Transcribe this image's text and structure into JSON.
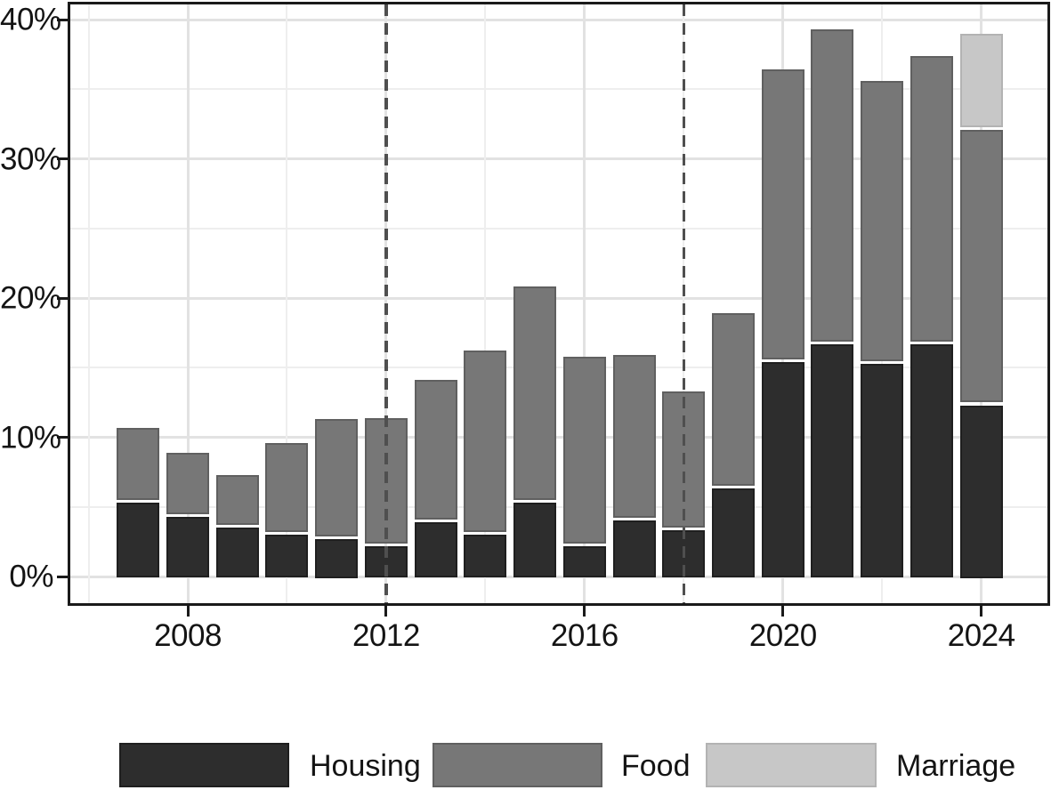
{
  "chart_data": {
    "type": "bar",
    "stacked": true,
    "title": "",
    "xlabel": "",
    "ylabel": "",
    "categories": [
      2007,
      2008,
      2009,
      2010,
      2011,
      2012,
      2013,
      2014,
      2015,
      2016,
      2017,
      2018,
      2019,
      2020,
      2021,
      2022,
      2023,
      2024
    ],
    "series": [
      {
        "name": "Housing",
        "color": "#2d2d2d",
        "border_color": "#1f1f1f",
        "values": [
          5.3,
          4.3,
          3.5,
          3.0,
          2.7,
          2.2,
          3.9,
          3.0,
          5.3,
          2.2,
          4.0,
          3.3,
          6.3,
          15.4,
          16.7,
          15.3,
          16.7,
          12.3
        ]
      },
      {
        "name": "Food",
        "color": "#777777",
        "border_color": "#606060",
        "values": [
          5.4,
          4.6,
          3.8,
          6.6,
          8.6,
          9.2,
          10.2,
          13.2,
          15.5,
          13.6,
          11.9,
          10.0,
          12.6,
          21.0,
          22.6,
          20.3,
          20.7,
          19.8
        ]
      },
      {
        "name": "Marriage",
        "color": "#c7c7c7",
        "border_color": "#b3b3b3",
        "values": [
          0,
          0,
          0,
          0,
          0,
          0,
          0,
          0,
          0,
          0,
          0,
          0,
          0,
          0,
          0,
          0,
          0,
          6.9
        ]
      }
    ],
    "totals": [
      10.7,
      8.9,
      7.3,
      9.6,
      11.3,
      11.4,
      14.1,
      16.2,
      20.8,
      15.8,
      15.9,
      13.3,
      18.9,
      36.4,
      39.3,
      35.6,
      37.4,
      39.0
    ],
    "x_ticks": [
      2008,
      2012,
      2016,
      2020,
      2024
    ],
    "x_tick_labels": [
      "2008",
      "2012",
      "2016",
      "2020",
      "2024"
    ],
    "x_gridline_years": [
      2006,
      2008,
      2010,
      2012,
      2014,
      2016,
      2018,
      2020,
      2022,
      2024
    ],
    "y_ticks": [
      0,
      10,
      20,
      30,
      40
    ],
    "y_tick_labels": [
      "0%",
      "10%",
      "20%",
      "30%",
      "40%"
    ],
    "y_minor_gridlines": [
      5,
      15,
      25,
      35
    ],
    "ylim": [
      0,
      41.1
    ],
    "xlim": [
      2005.6,
      2025.3
    ],
    "vlines": [
      {
        "x": 2012,
        "style": "dashed",
        "color": "#4f4f4f"
      },
      {
        "x": 2018,
        "style": "dashed",
        "color": "#4f4f4f"
      }
    ],
    "legend_position": "bottom",
    "grid": true,
    "colors": {
      "grid_major": "#e2e2e2",
      "grid_minor": "#eeeeee",
      "panel_border": "#1a1a1a",
      "axis_text": "#141414",
      "background": "#ffffff"
    }
  }
}
